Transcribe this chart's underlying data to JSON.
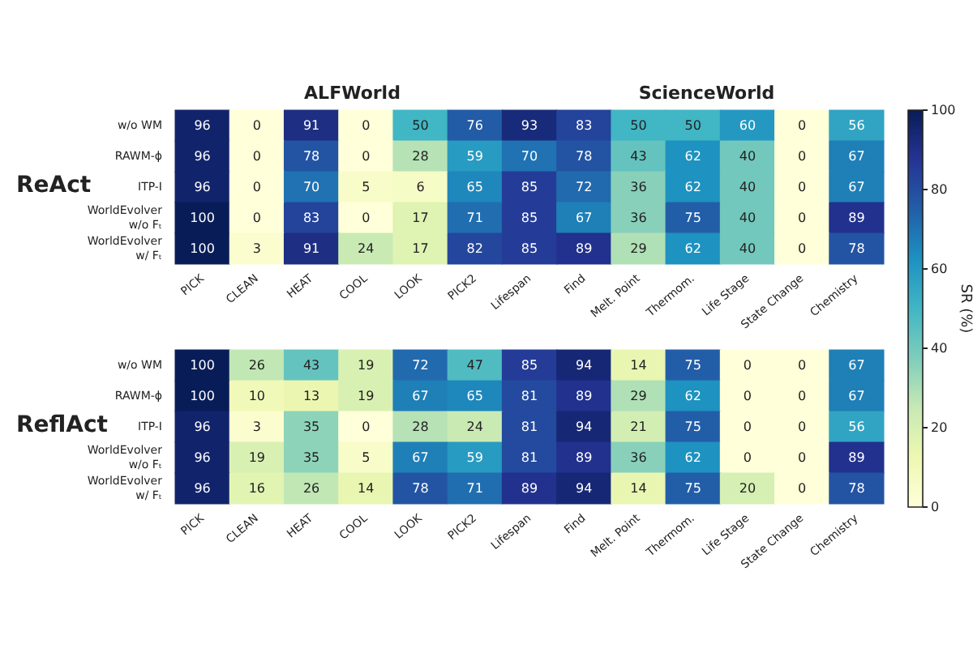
{
  "chart_data": [
    {
      "type": "heatmap",
      "title": "ReAct",
      "annotations": [
        "ALFWorld",
        "ScienceWorld"
      ],
      "categories": [
        "PICK",
        "CLEAN",
        "HEAT",
        "COOL",
        "LOOK",
        "PICK2",
        "Lifespan",
        "Find",
        "Melt. Point",
        "Thermom.",
        "Life Stage",
        "State Change",
        "Chemistry"
      ],
      "y_categories": [
        "w/o WM",
        "RAWM-ϕ",
        "ITP-I",
        "WorldEvolver\nw/o Fₜ",
        "WorldEvolver\nw/ Fₜ"
      ],
      "cells": [
        [
          96,
          0,
          91,
          0,
          50,
          76,
          93,
          83,
          50,
          50,
          60,
          0,
          56
        ],
        [
          96,
          0,
          78,
          0,
          28,
          59,
          70,
          78,
          43,
          62,
          40,
          0,
          67
        ],
        [
          96,
          0,
          70,
          5,
          6,
          65,
          85,
          72,
          36,
          62,
          40,
          0,
          67
        ],
        [
          100,
          0,
          83,
          0,
          17,
          71,
          85,
          67,
          36,
          75,
          40,
          0,
          89
        ],
        [
          100,
          3,
          91,
          24,
          17,
          82,
          85,
          89,
          29,
          62,
          40,
          0,
          78
        ]
      ],
      "data_labels": true,
      "clim": [
        0,
        100
      ],
      "cticks": [
        0,
        20,
        40,
        60,
        80,
        100
      ],
      "clabel": "SR (%)"
    },
    {
      "type": "heatmap",
      "title": "ReflAct",
      "categories": [
        "PICK",
        "CLEAN",
        "HEAT",
        "COOL",
        "LOOK",
        "PICK2",
        "Lifespan",
        "Find",
        "Melt. Point",
        "Thermom.",
        "Life Stage",
        "State Change",
        "Chemistry"
      ],
      "y_categories": [
        "w/o WM",
        "RAWM-ϕ",
        "ITP-I",
        "WorldEvolver\nw/o Fₜ",
        "WorldEvolver\nw/ Fₜ"
      ],
      "cells": [
        [
          100,
          26,
          43,
          19,
          72,
          47,
          85,
          94,
          14,
          75,
          0,
          0,
          67
        ],
        [
          100,
          10,
          13,
          19,
          67,
          65,
          81,
          89,
          29,
          62,
          0,
          0,
          67
        ],
        [
          96,
          3,
          35,
          0,
          28,
          24,
          81,
          94,
          21,
          75,
          0,
          0,
          56
        ],
        [
          96,
          19,
          35,
          5,
          67,
          59,
          81,
          89,
          36,
          62,
          0,
          0,
          89
        ],
        [
          96,
          16,
          26,
          14,
          78,
          71,
          89,
          94,
          14,
          75,
          20,
          0,
          78
        ]
      ],
      "data_labels": true
    }
  ]
}
